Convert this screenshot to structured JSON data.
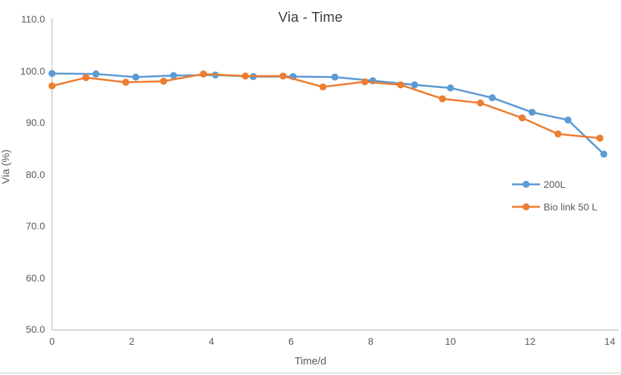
{
  "chart_data": {
    "type": "line",
    "title": "Via - Time",
    "xlabel": "Time/d",
    "ylabel": "Via (%)",
    "xlim": [
      0,
      14
    ],
    "ylim": [
      50,
      110
    ],
    "grid": false,
    "legend_position": "right-middle",
    "x_ticks": [
      {
        "v": 0,
        "label": "0"
      },
      {
        "v": 2,
        "label": "2"
      },
      {
        "v": 4,
        "label": "4"
      },
      {
        "v": 6,
        "label": "6"
      },
      {
        "v": 8,
        "label": "8"
      },
      {
        "v": 10,
        "label": "10"
      },
      {
        "v": 12,
        "label": "12"
      },
      {
        "v": 14,
        "label": "14"
      }
    ],
    "y_ticks": [
      {
        "v": 110,
        "label": "110.0"
      },
      {
        "v": 100,
        "label": "100.0"
      },
      {
        "v": 90,
        "label": "90.0"
      },
      {
        "v": 80,
        "label": "80.0"
      },
      {
        "v": 70,
        "label": "70.0"
      },
      {
        "v": 60,
        "label": "60.0"
      },
      {
        "v": 50,
        "label": "50.0"
      }
    ],
    "series": [
      {
        "name": "200L",
        "color": "#5B9BD5",
        "marker": "circle",
        "points": [
          [
            0,
            99.6
          ],
          [
            1.1,
            99.5
          ],
          [
            2.1,
            98.9
          ],
          [
            3.05,
            99.2
          ],
          [
            4.1,
            99.3
          ],
          [
            5.05,
            99.0
          ],
          [
            6.05,
            99.0
          ],
          [
            7.1,
            98.9
          ],
          [
            8.05,
            98.2
          ],
          [
            9.1,
            97.4
          ],
          [
            10.0,
            96.8
          ],
          [
            11.05,
            94.9
          ],
          [
            12.05,
            92.1
          ],
          [
            12.95,
            90.6
          ],
          [
            13.85,
            84.0
          ]
        ]
      },
      {
        "name": "Bio link 50 L",
        "color": "#ED7D31",
        "marker": "circle",
        "points": [
          [
            0,
            97.2
          ],
          [
            0.85,
            98.8
          ],
          [
            1.85,
            97.9
          ],
          [
            2.8,
            98.1
          ],
          [
            3.8,
            99.5
          ],
          [
            4.85,
            99.1
          ],
          [
            5.8,
            99.1
          ],
          [
            6.8,
            97.0
          ],
          [
            7.85,
            98.0
          ],
          [
            8.75,
            97.4
          ],
          [
            9.8,
            94.7
          ],
          [
            10.75,
            93.9
          ],
          [
            11.8,
            91.0
          ],
          [
            12.7,
            87.9
          ],
          [
            13.75,
            87.1
          ]
        ]
      }
    ],
    "colors": {
      "axis_line": "#BFBFBF",
      "tick_text": "#595959",
      "title_text": "#3F3F3F",
      "page_divider": "#E3E3E3"
    }
  }
}
